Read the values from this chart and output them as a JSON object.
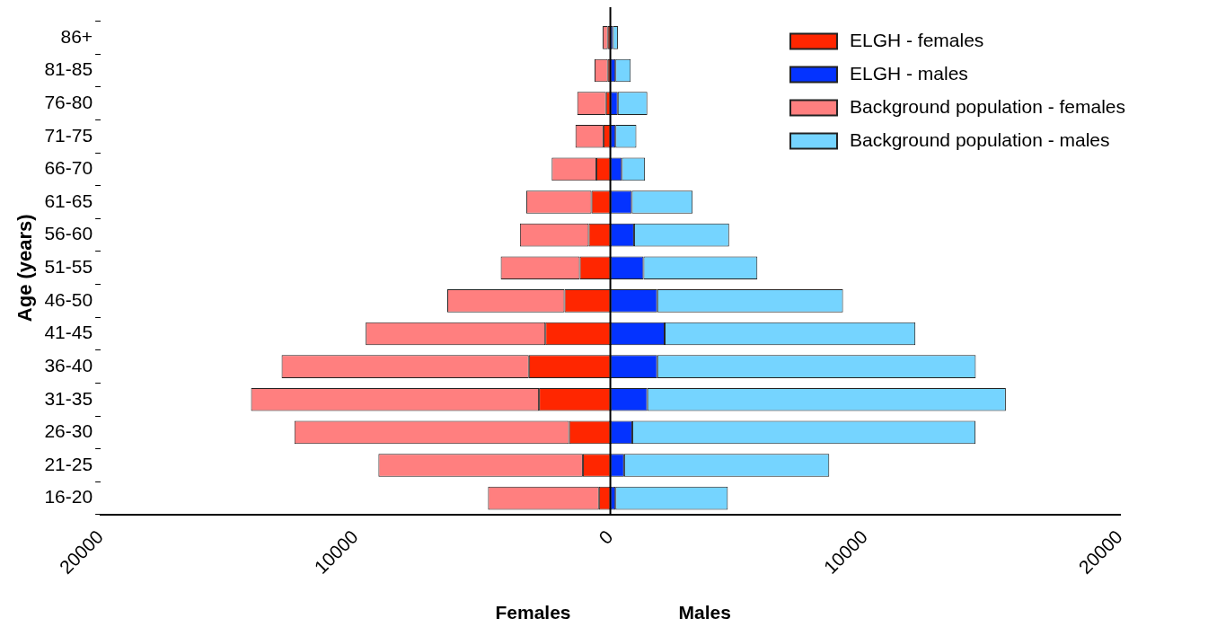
{
  "chart_data": {
    "type": "bar",
    "orientation": "horizontal",
    "stacked": true,
    "ylabel": "Age (years)",
    "annotations": [
      "Females",
      "Males"
    ],
    "categories": [
      "86+",
      "81-85",
      "76-80",
      "71-75",
      "66-70",
      "61-65",
      "56-60",
      "51-55",
      "46-50",
      "41-45",
      "36-40",
      "31-35",
      "26-30",
      "21-25",
      "16-20"
    ],
    "series": [
      {
        "name": "ELGH - females",
        "color": "#ff2600",
        "values": [
          -100,
          -100,
          -170,
          -270,
          -550,
          -740,
          -850,
          -1200,
          -1800,
          -2550,
          -3200,
          -2800,
          -1620,
          -1080,
          -450
        ]
      },
      {
        "name": "ELGH - males",
        "color": "#0433ff",
        "values": [
          100,
          200,
          290,
          200,
          450,
          840,
          930,
          1300,
          1840,
          2130,
          1840,
          1450,
          860,
          540,
          200
        ]
      },
      {
        "name": "Background population - females",
        "color": "#ff7f7f",
        "values": [
          -200,
          -520,
          -1130,
          -1100,
          -1750,
          -2560,
          -2700,
          -3100,
          -4600,
          -7050,
          -9700,
          -11300,
          -10780,
          -8020,
          -4350
        ]
      },
      {
        "name": "Background population - males",
        "color": "#75d4ff",
        "values": [
          200,
          600,
          1160,
          820,
          910,
          2390,
          3730,
          4470,
          7290,
          9840,
          12500,
          14070,
          13470,
          8050,
          4410
        ]
      }
    ],
    "xlim": [
      -20000,
      20000
    ],
    "xticks": [
      {
        "value": -20000,
        "label": "20000"
      },
      {
        "value": -10000,
        "label": "10000"
      },
      0,
      10000,
      20000
    ],
    "ref_lines": [
      {
        "axis": "x",
        "value": 0,
        "color": "#000000"
      }
    ],
    "grid": false,
    "legend": "top right"
  }
}
